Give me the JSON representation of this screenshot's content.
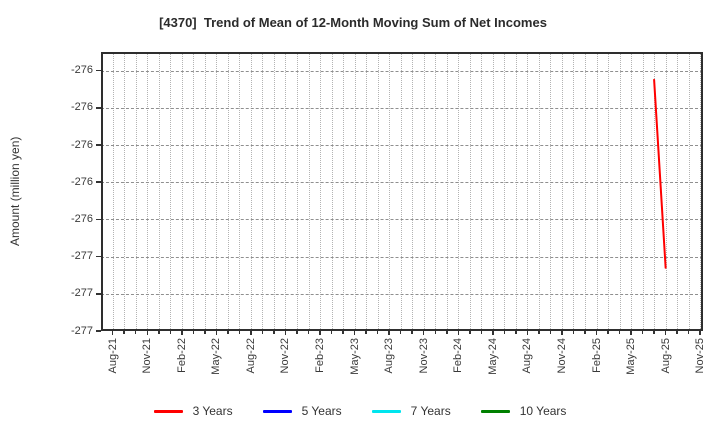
{
  "chart_data": {
    "type": "line",
    "title": "[4370]  Trend of Mean of 12-Month Moving Sum of Net Incomes",
    "xlabel": "",
    "ylabel": "Amount (million yen)",
    "background_color": "#ffffff",
    "grid": true,
    "legend_position": "bottom",
    "months_total": 52,
    "x_start_month": "Aug-21",
    "x_end_month": "Nov-25",
    "x_tick_step_months": 3,
    "x_tick_labels": [
      "Aug-21",
      "Nov-21",
      "Feb-22",
      "May-22",
      "Aug-22",
      "Nov-22",
      "Feb-23",
      "May-23",
      "Aug-23",
      "Nov-23",
      "Feb-24",
      "May-24",
      "Aug-24",
      "Nov-24",
      "Feb-25",
      "May-25",
      "Aug-25",
      "Nov-25"
    ],
    "ylim": [
      -277.0,
      -275.5
    ],
    "y_ticks": [
      {
        "value": -275.6,
        "label": "-276"
      },
      {
        "value": -275.8,
        "label": "-276"
      },
      {
        "value": -276.0,
        "label": "-276"
      },
      {
        "value": -276.2,
        "label": "-276"
      },
      {
        "value": -276.4,
        "label": "-276"
      },
      {
        "value": -276.6,
        "label": "-277"
      },
      {
        "value": -276.8,
        "label": "-277"
      },
      {
        "value": -277.0,
        "label": "-277"
      }
    ],
    "series": [
      {
        "name": "3 Years",
        "color": "#ff0000",
        "points": [
          {
            "month": "Jul-25",
            "month_index": 47,
            "value": -275.65
          },
          {
            "month": "Aug-25",
            "month_index": 48,
            "value": -276.66
          }
        ]
      },
      {
        "name": "5 Years",
        "color": "#0000ff",
        "points": []
      },
      {
        "name": "7 Years",
        "color": "#00e5ee",
        "points": []
      },
      {
        "name": "10 Years",
        "color": "#008000",
        "points": []
      }
    ]
  }
}
